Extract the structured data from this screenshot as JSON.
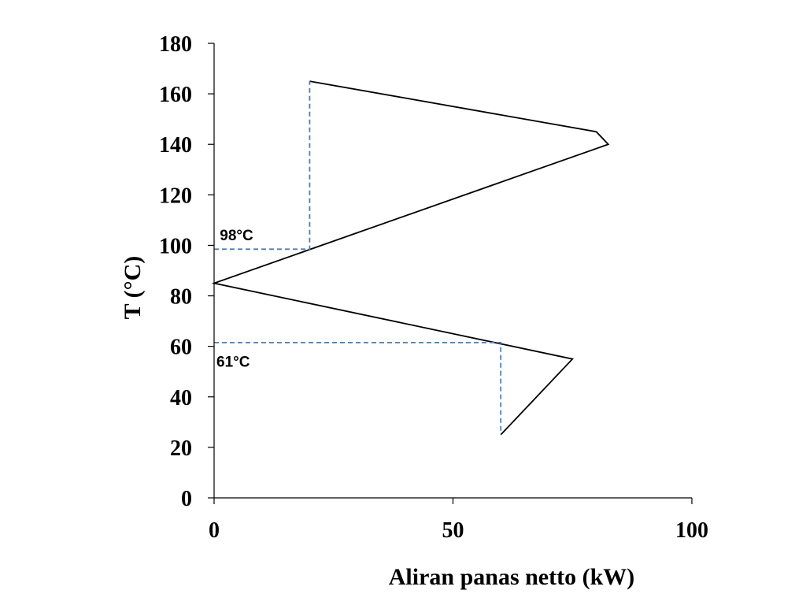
{
  "chart_data": {
    "type": "line",
    "title": "",
    "xlabel": "Aliran panas netto (kW)",
    "ylabel": "T (°C)",
    "xlim": [
      0,
      100
    ],
    "ylim": [
      0,
      180
    ],
    "xticks": [
      0,
      50,
      100
    ],
    "yticks": [
      0,
      20,
      40,
      60,
      80,
      100,
      120,
      140,
      160,
      180
    ],
    "grid": false,
    "legend": "none",
    "series": [
      {
        "color": "#000000",
        "style": "solid",
        "points": [
          {
            "x": 20,
            "y": 165
          },
          {
            "x": 80,
            "y": 145
          },
          {
            "x": 82.5,
            "y": 140
          },
          {
            "x": 0,
            "y": 85
          },
          {
            "x": 75,
            "y": 55
          },
          {
            "x": 60,
            "y": 25
          }
        ]
      },
      {
        "color": "#4a7ebb",
        "style": "dashed",
        "points": [
          {
            "x": 0,
            "y": 98.5
          },
          {
            "x": 20,
            "y": 98.5
          },
          {
            "x": 20,
            "y": 165
          }
        ]
      },
      {
        "color": "#4a7ebb",
        "style": "dashed",
        "points": [
          {
            "x": 0,
            "y": 61.5
          },
          {
            "x": 60,
            "y": 61.5
          },
          {
            "x": 60,
            "y": 25
          }
        ]
      }
    ],
    "annotations": [
      {
        "text": "98°C",
        "x": 1.2,
        "y": 102
      },
      {
        "text": "61°C",
        "x": 0.5,
        "y": 52
      }
    ]
  }
}
